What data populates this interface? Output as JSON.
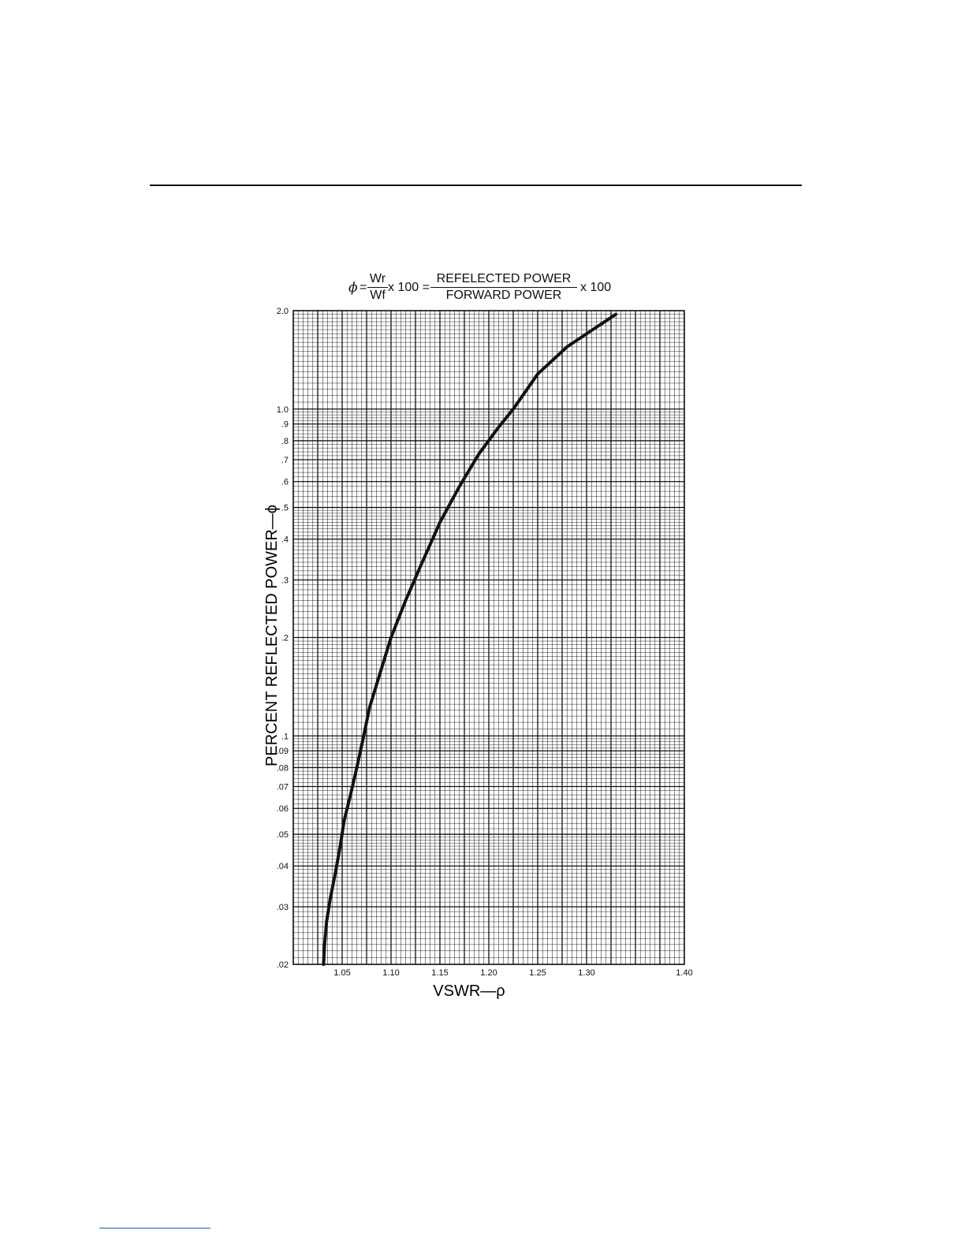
{
  "formula": {
    "phi": "ϕ",
    "equals": "=",
    "num1": "Wr",
    "den1": "Wf",
    "mid": "x 100 =",
    "num2": "REFELECTED POWER",
    "den2": "FORWARD POWER",
    "tail": "x 100"
  },
  "chart_data": {
    "type": "line",
    "title": "",
    "xlabel": "VSWR—ρ",
    "ylabel": "PERCENT REFLECTED POWER—ϕ",
    "xscale": "linear",
    "yscale": "log",
    "xlim": [
      1.0,
      1.4
    ],
    "ylim": [
      0.02,
      2.0
    ],
    "grid": true,
    "x_ticks": [
      {
        "value": 1.05,
        "label": "1.05"
      },
      {
        "value": 1.1,
        "label": "1.10"
      },
      {
        "value": 1.15,
        "label": "1.15"
      },
      {
        "value": 1.2,
        "label": "1.20"
      },
      {
        "value": 1.25,
        "label": "1.25"
      },
      {
        "value": 1.3,
        "label": "1.30"
      },
      {
        "value": 1.4,
        "label": "1.40"
      }
    ],
    "y_ticks": [
      {
        "value": 2.0,
        "label": "2.0"
      },
      {
        "value": 1.0,
        "label": "1.0"
      },
      {
        "value": 0.9,
        "label": ".9"
      },
      {
        "value": 0.8,
        "label": ".8"
      },
      {
        "value": 0.7,
        "label": ".7"
      },
      {
        "value": 0.6,
        "label": ".6"
      },
      {
        "value": 0.5,
        "label": ".5"
      },
      {
        "value": 0.4,
        "label": ".4"
      },
      {
        "value": 0.3,
        "label": ".3"
      },
      {
        "value": 0.2,
        "label": ".2"
      },
      {
        "value": 0.1,
        "label": ".1"
      },
      {
        "value": 0.09,
        "label": ".09"
      },
      {
        "value": 0.08,
        "label": ".08"
      },
      {
        "value": 0.07,
        "label": ".07"
      },
      {
        "value": 0.06,
        "label": ".06"
      },
      {
        "value": 0.05,
        "label": ".05"
      },
      {
        "value": 0.04,
        "label": ".04"
      },
      {
        "value": 0.03,
        "label": ".03"
      },
      {
        "value": 0.02,
        "label": ".02"
      }
    ],
    "series": [
      {
        "x": [
          1.031,
          1.032,
          1.034,
          1.038,
          1.043,
          1.048,
          1.052,
          1.058,
          1.065,
          1.072,
          1.078,
          1.09,
          1.1,
          1.115,
          1.13,
          1.15,
          1.17,
          1.19,
          1.21,
          1.225,
          1.25,
          1.28,
          1.31,
          1.33
        ],
        "y": [
          0.02,
          0.023,
          0.027,
          0.032,
          0.038,
          0.046,
          0.055,
          0.065,
          0.08,
          0.1,
          0.122,
          0.16,
          0.2,
          0.26,
          0.33,
          0.45,
          0.58,
          0.73,
          0.88,
          1.0,
          1.28,
          1.55,
          1.78,
          1.95
        ]
      }
    ]
  }
}
